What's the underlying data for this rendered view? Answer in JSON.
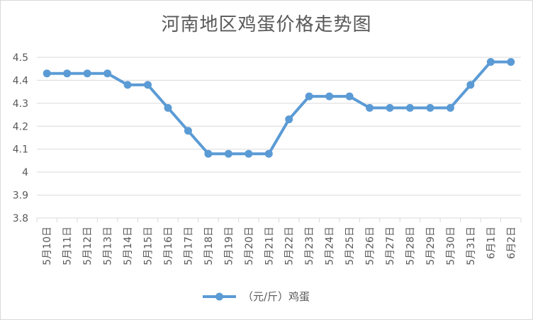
{
  "chart_data": {
    "type": "line",
    "title": "河南地区鸡蛋价格走势图",
    "xlabel": "",
    "ylabel": "",
    "ylim": [
      3.8,
      4.5
    ],
    "yticks": [
      "3.8",
      "3.9",
      "4",
      "4.1",
      "4.2",
      "4.3",
      "4.4",
      "4.5"
    ],
    "categories": [
      "5月10日",
      "5月11日",
      "5月12日",
      "5月13日",
      "5月14日",
      "5月15日",
      "5月16日",
      "5月17日",
      "5月18日",
      "5月19日",
      "5月20日",
      "5月21日",
      "5月22日",
      "5月23日",
      "5月24日",
      "5月25日",
      "5月26日",
      "5月27日",
      "5月28日",
      "5月29日",
      "5月30日",
      "5月31日",
      "6月1日",
      "6月2日"
    ],
    "series": [
      {
        "name": "（元/斤）鸡蛋",
        "color": "#5b9bd5",
        "values": [
          4.43,
          4.43,
          4.43,
          4.43,
          4.38,
          4.38,
          4.28,
          4.18,
          4.08,
          4.08,
          4.08,
          4.08,
          4.23,
          4.33,
          4.33,
          4.33,
          4.28,
          4.28,
          4.28,
          4.28,
          4.28,
          4.38,
          4.48,
          4.48
        ]
      }
    ],
    "grid": true,
    "legend": "bottom"
  }
}
